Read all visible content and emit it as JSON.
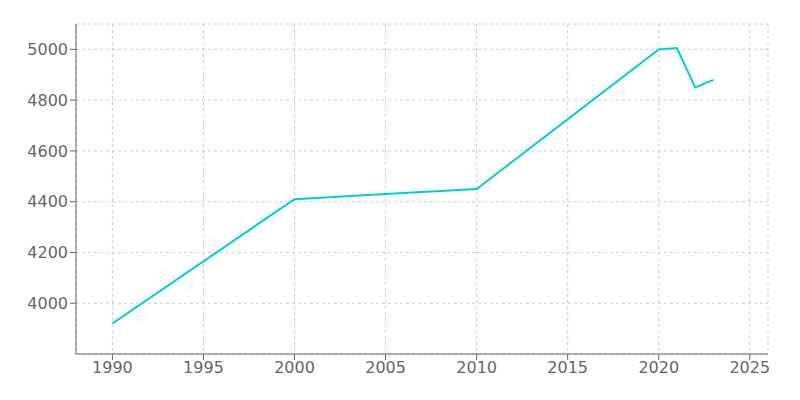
{
  "chart_data": {
    "type": "line",
    "x": [
      1990,
      2000,
      2005,
      2010,
      2020,
      2021,
      2022,
      2023
    ],
    "values": [
      3920,
      4410,
      4430,
      4450,
      5000,
      5005,
      4850,
      4880
    ],
    "color": "#00CED1",
    "xlim": [
      1988,
      2026
    ],
    "ylim": [
      3800,
      5100
    ],
    "xticks": [
      1990,
      1995,
      2000,
      2005,
      2010,
      2015,
      2020,
      2025
    ],
    "yticks": [
      4000,
      4200,
      4400,
      4600,
      4800,
      5000
    ],
    "grid": true
  }
}
